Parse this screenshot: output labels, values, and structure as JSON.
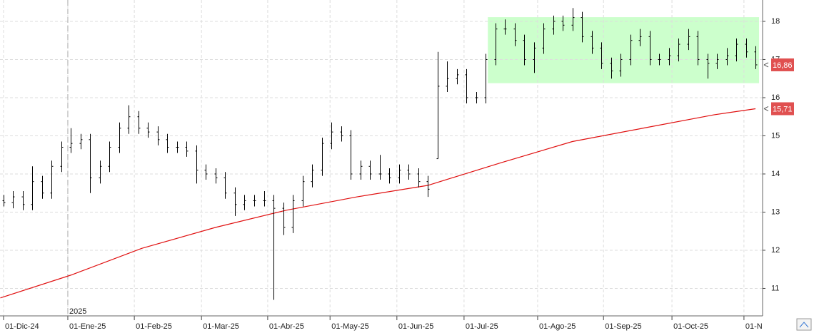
{
  "chart_data": {
    "type": "ohlc",
    "x": [
      0,
      3,
      6,
      9,
      12,
      15,
      18,
      21,
      24,
      27,
      30,
      33,
      36,
      39,
      42,
      45,
      48,
      51,
      54,
      57,
      60,
      63,
      66,
      69,
      72,
      75,
      78,
      81,
      84,
      87,
      90,
      93,
      96,
      99,
      102,
      105,
      108,
      111,
      114,
      117,
      120,
      123,
      126,
      129,
      132,
      135,
      138,
      141,
      144,
      147,
      150,
      153,
      156,
      159,
      162,
      165,
      168,
      171,
      174,
      177,
      180,
      183,
      186,
      189,
      192,
      195,
      198,
      201,
      204,
      207,
      210,
      213,
      216,
      219,
      222,
      225,
      228,
      231,
      234
    ],
    "open": [
      13.3,
      13.25,
      13.4,
      13.2,
      13.8,
      13.5,
      14.2,
      14.7,
      14.8,
      14.9,
      13.9,
      14.2,
      14.7,
      15.2,
      15.5,
      15.2,
      15.1,
      14.9,
      14.7,
      14.7,
      14.6,
      14.1,
      14.0,
      13.9,
      13.5,
      13.2,
      13.3,
      13.3,
      13.3,
      13.1,
      12.6,
      13.3,
      13.8,
      14.1,
      14.8,
      15.1,
      15.0,
      14.0,
      14.2,
      14.0,
      14.0,
      13.9,
      14.1,
      14.0,
      13.8,
      14.4,
      16.3,
      16.5,
      16.6,
      16.0,
      16.0,
      17.0,
      17.8,
      17.8,
      17.5,
      17.0,
      17.3,
      17.8,
      18.0,
      17.9,
      18.1,
      17.6,
      17.3,
      16.9,
      16.7,
      17.0,
      17.5,
      17.6,
      17.0,
      17.0,
      17.1,
      17.4,
      17.6,
      17.0,
      16.9,
      17.0,
      17.1,
      17.4,
      17.2
    ],
    "high": [
      13.45,
      13.55,
      13.55,
      14.2,
      13.95,
      14.35,
      14.85,
      15.2,
      15.05,
      15.05,
      14.35,
      14.85,
      15.35,
      15.8,
      15.65,
      15.35,
      15.25,
      15.05,
      14.85,
      14.85,
      14.75,
      14.25,
      14.15,
      14.05,
      13.65,
      13.45,
      13.45,
      13.55,
      13.45,
      13.25,
      13.45,
      13.95,
      14.25,
      14.95,
      15.35,
      15.25,
      15.15,
      14.35,
      14.35,
      14.5,
      14.15,
      14.25,
      14.25,
      14.15,
      13.95,
      17.2,
      16.95,
      16.75,
      16.75,
      16.15,
      17.15,
      17.95,
      18.05,
      17.95,
      17.65,
      17.45,
      17.95,
      18.15,
      18.15,
      18.35,
      18.25,
      17.75,
      17.45,
      17.05,
      17.15,
      17.65,
      17.8,
      17.75,
      17.15,
      17.3,
      17.55,
      17.8,
      17.75,
      17.15,
      17.15,
      17.3,
      17.55,
      17.55,
      17.35
    ],
    "low": [
      13.15,
      13.1,
      13.05,
      13.05,
      13.35,
      13.35,
      14.05,
      14.55,
      14.65,
      13.5,
      13.75,
      14.05,
      14.55,
      15.05,
      15.05,
      14.95,
      14.75,
      14.55,
      14.55,
      14.45,
      13.75,
      13.85,
      13.75,
      13.35,
      12.9,
      13.05,
      13.15,
      13.15,
      10.7,
      12.4,
      12.45,
      13.15,
      13.65,
      13.95,
      14.65,
      14.85,
      13.85,
      13.85,
      13.85,
      13.85,
      13.75,
      13.75,
      13.85,
      13.65,
      13.4,
      14.4,
      16.15,
      16.35,
      15.85,
      15.85,
      15.85,
      16.85,
      17.65,
      17.35,
      16.85,
      16.65,
      17.15,
      17.65,
      17.75,
      17.75,
      17.45,
      17.15,
      16.75,
      16.5,
      16.55,
      16.85,
      17.35,
      16.85,
      16.85,
      16.85,
      16.95,
      17.25,
      16.85,
      16.5,
      16.75,
      16.85,
      16.95,
      17.05,
      16.75
    ],
    "close": [
      13.25,
      13.4,
      13.2,
      13.8,
      13.5,
      14.2,
      14.7,
      14.8,
      14.9,
      13.9,
      14.2,
      14.7,
      15.2,
      15.5,
      15.2,
      15.1,
      14.9,
      14.7,
      14.7,
      14.6,
      14.1,
      14.0,
      13.9,
      13.5,
      13.2,
      13.3,
      13.3,
      13.3,
      13.1,
      12.6,
      13.3,
      13.8,
      14.1,
      14.8,
      15.1,
      15.0,
      14.0,
      14.2,
      14.0,
      14.0,
      13.9,
      14.1,
      14.0,
      13.8,
      13.6,
      16.3,
      16.5,
      16.6,
      16.0,
      16.0,
      17.0,
      17.8,
      17.8,
      17.5,
      17.0,
      17.3,
      17.8,
      18.0,
      17.9,
      18.1,
      17.6,
      17.3,
      16.9,
      16.7,
      17.0,
      17.5,
      17.6,
      17.0,
      17.0,
      17.1,
      17.4,
      17.6,
      17.0,
      16.9,
      17.0,
      17.1,
      17.4,
      17.2,
      16.86
    ],
    "color": "#000000",
    "last_label": {
      "value": 16.86,
      "label": "16,86"
    },
    "moving_average": {
      "color": "#e01010",
      "x": [
        -1,
        21,
        43,
        66,
        88,
        110,
        132,
        155,
        177,
        199,
        221,
        234
      ],
      "values": [
        10.75,
        11.35,
        12.05,
        12.6,
        13.05,
        13.4,
        13.7,
        14.3,
        14.85,
        15.2,
        15.55,
        15.71
      ],
      "last_label": {
        "value": 15.71,
        "label": "15,71"
      }
    },
    "highlight": {
      "x": [
        150.7,
        235.1
      ],
      "y": [
        16.38,
        18.11
      ],
      "color": "#ccffcc"
    },
    "year_marker": {
      "value": 20,
      "label": "2025"
    },
    "xlim": [
      -1.1,
      236.2
    ],
    "ylim": [
      10.28,
      18.56
    ],
    "yticks": [
      11,
      12,
      13,
      14,
      15,
      16,
      17,
      18
    ],
    "xticks": [
      {
        "value": 0,
        "label": "01-Dic-24"
      },
      {
        "value": 20,
        "label": "01-Ene-25"
      },
      {
        "value": 40.7,
        "label": "01-Feb-25"
      },
      {
        "value": 61.6,
        "label": "01-Mar-25"
      },
      {
        "value": 82.2,
        "label": "01-Abr-25"
      },
      {
        "value": 101.6,
        "label": "01-May-25"
      },
      {
        "value": 122.4,
        "label": "01-Jun-25"
      },
      {
        "value": 143.3,
        "label": "01-Jul-25"
      },
      {
        "value": 166.2,
        "label": "01-Ago-25"
      },
      {
        "value": 186.7,
        "label": "01-Sep-25"
      },
      {
        "value": 208,
        "label": "01-Oct-25"
      },
      {
        "value": 230.4,
        "label": "01-N"
      }
    ],
    "grid": true
  }
}
